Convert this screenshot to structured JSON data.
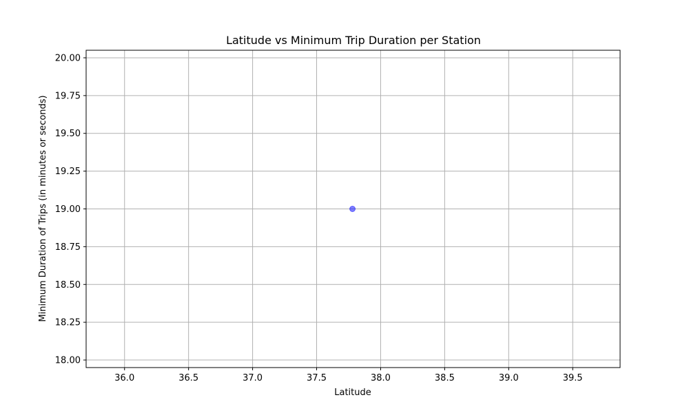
{
  "chart_data": {
    "type": "scatter",
    "title": "Latitude vs Minimum Trip Duration per Station",
    "xlabel": "Latitude",
    "ylabel": "Minimum Duration of Trips (in minutes or seconds)",
    "xlim": [
      35.7,
      39.87
    ],
    "ylim": [
      17.95,
      20.05
    ],
    "x_ticks": [
      36.0,
      36.5,
      37.0,
      37.5,
      38.0,
      38.5,
      39.0,
      39.5
    ],
    "y_ticks": [
      18.0,
      18.25,
      18.5,
      18.75,
      19.0,
      19.25,
      19.5,
      19.75,
      20.0
    ],
    "x_tick_labels": [
      "36.0",
      "36.5",
      "37.0",
      "37.5",
      "38.0",
      "38.5",
      "39.0",
      "39.5"
    ],
    "y_tick_labels": [
      "18.00",
      "18.25",
      "18.50",
      "18.75",
      "19.00",
      "19.25",
      "19.50",
      "19.75",
      "20.00"
    ],
    "grid": true,
    "points": [
      {
        "x": 37.78,
        "y": 19.0
      }
    ],
    "colors": {
      "marker": "#0000ff",
      "grid": "#b0b0b0",
      "axis": "#000000"
    }
  }
}
